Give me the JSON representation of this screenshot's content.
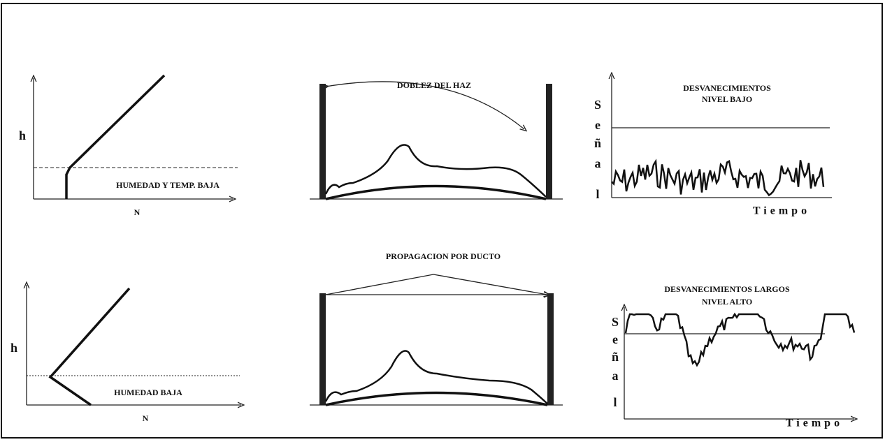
{
  "top_row": {
    "profile": {
      "y_label": "h",
      "x_label": "N",
      "caption": "HUMEDAD Y TEMP. BAJA"
    },
    "bending": {
      "title": "DOBLEZ DEL HAZ"
    },
    "fading": {
      "title_lines": [
        "DESVANECIMIENTOS",
        "NIVEL BAJO"
      ],
      "y_label_letters": [
        "S",
        "e",
        "ñ",
        "a",
        "l"
      ],
      "x_label": "Tiempo"
    }
  },
  "bottom_row": {
    "profile": {
      "y_label": "h",
      "x_label": "N",
      "caption": "HUMEDAD BAJA"
    },
    "duct": {
      "title": "PROPAGACION POR DUCTO"
    },
    "fading": {
      "title_lines": [
        "DESVANECIMIENTOS LARGOS",
        "NIVEL ALTO"
      ],
      "y_label_letters": [
        "S",
        "e",
        "ñ",
        "a",
        "l"
      ],
      "x_label": "Tiempo"
    }
  }
}
